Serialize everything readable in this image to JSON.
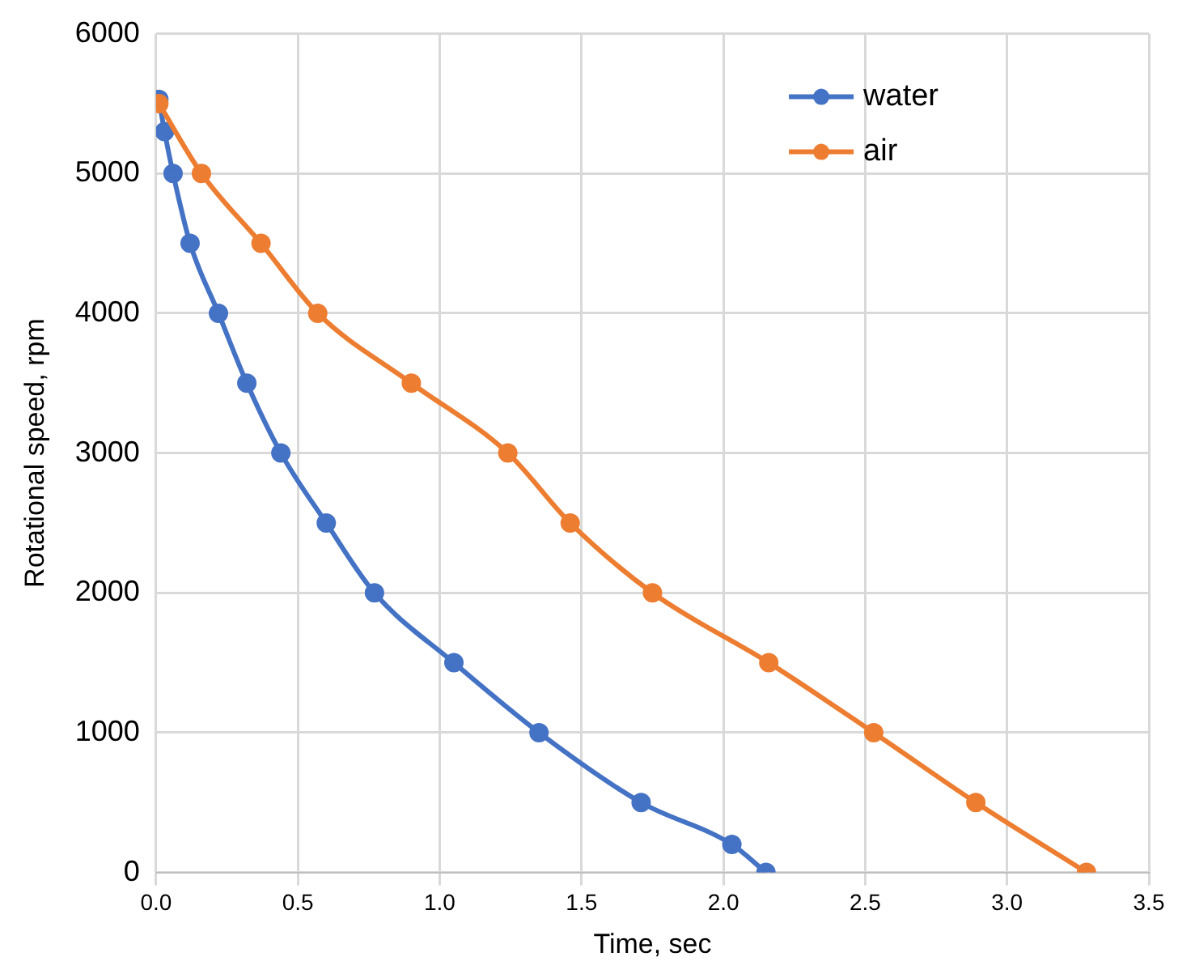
{
  "chart_data": {
    "type": "line",
    "xlabel": "Time, sec",
    "ylabel": "Rotational speed, rpm",
    "xlim": [
      0,
      3.5
    ],
    "xticks": [
      {
        "value": 0,
        "label": "0.0"
      },
      0.5,
      {
        "value": 1,
        "label": "1.0"
      },
      1.5,
      {
        "value": 2,
        "label": "2.0"
      },
      2.5,
      {
        "value": 3,
        "label": "3.0"
      },
      3.5
    ],
    "ylim": [
      0,
      6000
    ],
    "yticks": [
      0,
      1000,
      2000,
      3000,
      4000,
      5000,
      6000
    ],
    "grid": true,
    "legend": "top right",
    "marker": "circle",
    "series": [
      {
        "name": "water",
        "color": "#4472c4",
        "x": [
          0.01,
          0.03,
          0.06,
          0.12,
          0.22,
          0.32,
          0.44,
          0.6,
          0.77,
          1.05,
          1.35,
          1.71,
          2.03,
          2.15
        ],
        "values": [
          5530,
          5300,
          5000,
          4500,
          4000,
          3500,
          3000,
          2500,
          2000,
          1500,
          1000,
          500,
          200,
          0
        ]
      },
      {
        "name": "air",
        "color": "#ed7d31",
        "x": [
          0.01,
          0.16,
          0.37,
          0.57,
          0.9,
          1.24,
          1.46,
          1.75,
          2.16,
          2.53,
          2.89,
          3.28
        ],
        "values": [
          5500,
          5000,
          4500,
          4000,
          3500,
          3000,
          2500,
          2000,
          1500,
          1000,
          500,
          0
        ]
      }
    ]
  }
}
